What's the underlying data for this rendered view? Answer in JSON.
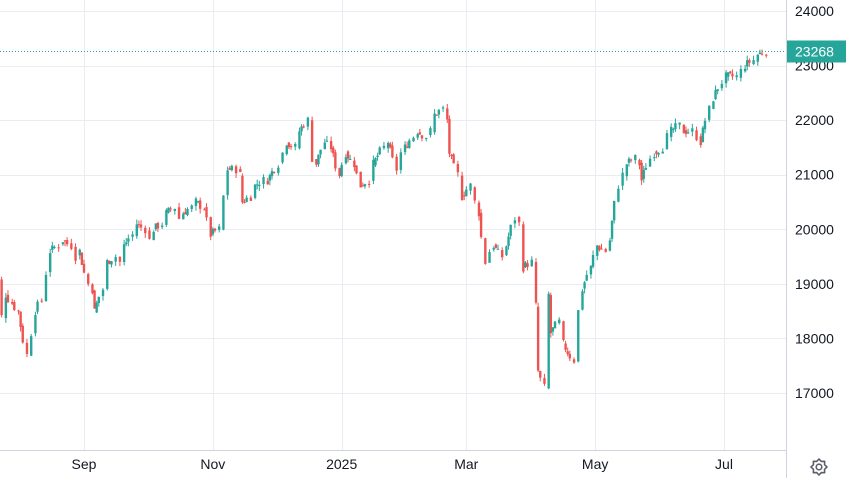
{
  "colors": {
    "up": "#26a69a",
    "down": "#ef5350",
    "grid": "#e9ecf1",
    "axis_border": "#d1d4dc",
    "text": "#131722",
    "last_price_tag": "#26a69a",
    "last_price_line": "#26a69a",
    "settings_icon": "#5d606b"
  },
  "last_price": {
    "label": "23268",
    "value": 23268
  },
  "settings": {
    "icon": "gear-icon"
  },
  "chart_data": {
    "type": "candlestick",
    "title": "",
    "xlabel": "",
    "ylabel": "",
    "ylim": [
      16150,
      24200
    ],
    "grid": true,
    "y_ticks": [
      {
        "value": 17000,
        "label": "17000"
      },
      {
        "value": 18000,
        "label": "18000"
      },
      {
        "value": 19000,
        "label": "19000"
      },
      {
        "value": 20000,
        "label": "20000"
      },
      {
        "value": 21000,
        "label": "21000"
      },
      {
        "value": 22000,
        "label": "22000"
      },
      {
        "value": 23000,
        "label": "23000"
      },
      {
        "value": 24000,
        "label": "24000"
      }
    ],
    "x_ticks": [
      {
        "date": "2024-09-01",
        "label": "Sep"
      },
      {
        "date": "2024-11-01",
        "label": "Nov"
      },
      {
        "date": "2025-01-01",
        "label": "2025"
      },
      {
        "date": "2025-03-01",
        "label": "Mar"
      },
      {
        "date": "2025-05-01",
        "label": "May"
      },
      {
        "date": "2025-07-01",
        "label": "Jul"
      }
    ],
    "x_range": [
      "2024-07-16",
      "2025-07-22"
    ],
    "series": [
      {
        "values": [
          [
            "2024-07-17",
            19400
          ],
          [
            "2024-07-22",
            19100
          ],
          [
            "2024-07-24",
            18400
          ],
          [
            "2024-07-26",
            18800
          ],
          [
            "2024-08-01",
            18500
          ],
          [
            "2024-08-05",
            17700
          ],
          [
            "2024-08-07",
            18100
          ],
          [
            "2024-08-09",
            18500
          ],
          [
            "2024-08-12",
            18700
          ],
          [
            "2024-08-14",
            19200
          ],
          [
            "2024-08-16",
            19600
          ],
          [
            "2024-08-20",
            19700
          ],
          [
            "2024-08-22",
            19800
          ],
          [
            "2024-08-26",
            19700
          ],
          [
            "2024-08-28",
            19500
          ],
          [
            "2024-08-30",
            19600
          ],
          [
            "2024-09-03",
            19000
          ],
          [
            "2024-09-05",
            18900
          ],
          [
            "2024-09-06",
            18500
          ],
          [
            "2024-09-10",
            18900
          ],
          [
            "2024-09-12",
            19400
          ],
          [
            "2024-09-16",
            19500
          ],
          [
            "2024-09-18",
            19400
          ],
          [
            "2024-09-20",
            19700
          ],
          [
            "2024-09-24",
            19900
          ],
          [
            "2024-09-26",
            20100
          ],
          [
            "2024-09-30",
            20000
          ],
          [
            "2024-10-02",
            19800
          ],
          [
            "2024-10-04",
            20000
          ],
          [
            "2024-10-08",
            20100
          ],
          [
            "2024-10-10",
            20300
          ],
          [
            "2024-10-14",
            20400
          ],
          [
            "2024-10-16",
            20200
          ],
          [
            "2024-10-18",
            20300
          ],
          [
            "2024-10-22",
            20400
          ],
          [
            "2024-10-24",
            20500
          ],
          [
            "2024-10-28",
            20400
          ],
          [
            "2024-10-31",
            19900
          ],
          [
            "2024-11-04",
            20000
          ],
          [
            "2024-11-06",
            20600
          ],
          [
            "2024-11-08",
            21100
          ],
          [
            "2024-11-12",
            21100
          ],
          [
            "2024-11-14",
            21000
          ],
          [
            "2024-11-15",
            20500
          ],
          [
            "2024-11-19",
            20600
          ],
          [
            "2024-11-21",
            20800
          ],
          [
            "2024-11-25",
            20900
          ],
          [
            "2024-11-27",
            20900
          ],
          [
            "2024-12-02",
            21200
          ],
          [
            "2024-12-04",
            21400
          ],
          [
            "2024-12-06",
            21600
          ],
          [
            "2024-12-10",
            21500
          ],
          [
            "2024-12-12",
            21800
          ],
          [
            "2024-12-16",
            22000
          ],
          [
            "2024-12-18",
            21300
          ],
          [
            "2024-12-20",
            21200
          ],
          [
            "2024-12-24",
            21600
          ],
          [
            "2024-12-27",
            21500
          ],
          [
            "2024-12-31",
            21000
          ],
          [
            "2025-01-03",
            21400
          ],
          [
            "2025-01-07",
            21200
          ],
          [
            "2025-01-10",
            20800
          ],
          [
            "2025-01-14",
            20900
          ],
          [
            "2025-01-16",
            21200
          ],
          [
            "2025-01-21",
            21500
          ],
          [
            "2025-01-23",
            21600
          ],
          [
            "2025-01-27",
            21100
          ],
          [
            "2025-01-29",
            21400
          ],
          [
            "2025-01-31",
            21500
          ],
          [
            "2025-02-04",
            21700
          ],
          [
            "2025-02-06",
            21800
          ],
          [
            "2025-02-10",
            21700
          ],
          [
            "2025-02-12",
            21800
          ],
          [
            "2025-02-14",
            22100
          ],
          [
            "2025-02-18",
            22200
          ],
          [
            "2025-02-20",
            22000
          ],
          [
            "2025-02-21",
            21400
          ],
          [
            "2025-02-25",
            21000
          ],
          [
            "2025-02-27",
            20600
          ],
          [
            "2025-03-03",
            20800
          ],
          [
            "2025-03-05",
            20500
          ],
          [
            "2025-03-07",
            20300
          ],
          [
            "2025-03-10",
            19400
          ],
          [
            "2025-03-12",
            19600
          ],
          [
            "2025-03-14",
            19700
          ],
          [
            "2025-03-18",
            19500
          ],
          [
            "2025-03-20",
            19700
          ],
          [
            "2025-03-24",
            20200
          ],
          [
            "2025-03-26",
            20100
          ],
          [
            "2025-03-28",
            19300
          ],
          [
            "2025-04-01",
            19400
          ],
          [
            "2025-04-03",
            18600
          ],
          [
            "2025-04-04",
            17400
          ],
          [
            "2025-04-07",
            17100
          ],
          [
            "2025-04-09",
            18800
          ],
          [
            "2025-04-10",
            18100
          ],
          [
            "2025-04-14",
            18300
          ],
          [
            "2025-04-16",
            17900
          ],
          [
            "2025-04-21",
            17600
          ],
          [
            "2025-04-23",
            18500
          ],
          [
            "2025-04-25",
            18900
          ],
          [
            "2025-04-29",
            19300
          ],
          [
            "2025-05-02",
            19700
          ],
          [
            "2025-05-06",
            19600
          ],
          [
            "2025-05-08",
            19800
          ],
          [
            "2025-05-12",
            20800
          ],
          [
            "2025-05-14",
            21000
          ],
          [
            "2025-05-16",
            21200
          ],
          [
            "2025-05-20",
            21300
          ],
          [
            "2025-05-22",
            21200
          ],
          [
            "2025-05-23",
            20900
          ],
          [
            "2025-05-27",
            21300
          ],
          [
            "2025-05-29",
            21400
          ],
          [
            "2025-06-02",
            21500
          ],
          [
            "2025-06-04",
            21700
          ],
          [
            "2025-06-06",
            21800
          ],
          [
            "2025-06-10",
            21900
          ],
          [
            "2025-06-12",
            21800
          ],
          [
            "2025-06-16",
            21800
          ],
          [
            "2025-06-18",
            21700
          ],
          [
            "2025-06-20",
            21600
          ],
          [
            "2025-06-24",
            22200
          ],
          [
            "2025-06-26",
            22400
          ],
          [
            "2025-06-30",
            22700
          ],
          [
            "2025-07-02",
            22800
          ],
          [
            "2025-07-07",
            22800
          ],
          [
            "2025-07-09",
            22900
          ],
          [
            "2025-07-11",
            23000
          ],
          [
            "2025-07-15",
            23100
          ],
          [
            "2025-07-17",
            23200
          ],
          [
            "2025-07-21",
            23268
          ]
        ]
      }
    ]
  }
}
